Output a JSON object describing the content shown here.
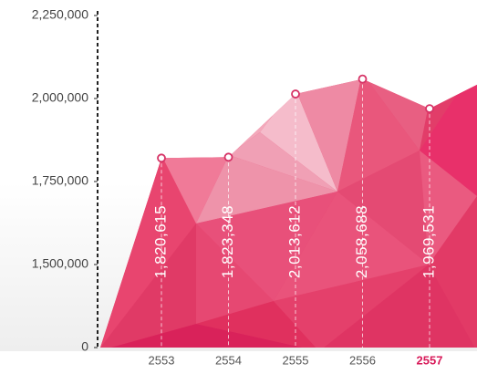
{
  "chart_data": {
    "type": "area",
    "categories": [
      "2553",
      "2554",
      "2555",
      "2556",
      "2557"
    ],
    "values": [
      1820615,
      1823348,
      2013612,
      2058688,
      1969531
    ],
    "value_labels": [
      "1,820,615",
      "1,823,348",
      "2,013,612",
      "2,058,688",
      "1,969,531"
    ],
    "ylim": [
      0,
      2250000
    ],
    "axis_break": [
      0,
      1250000
    ],
    "yticks": [
      0,
      {
        "value": 1500000,
        "label": "1,500,000"
      },
      {
        "value": 1750000,
        "label": "1,750,000"
      },
      {
        "value": 2000000,
        "label": "2,000,000"
      },
      {
        "value": 2250000,
        "label": "2,250,000"
      }
    ],
    "color": "#e8456f",
    "highlight_index": 4,
    "highlight_color": "#d81b5a"
  }
}
